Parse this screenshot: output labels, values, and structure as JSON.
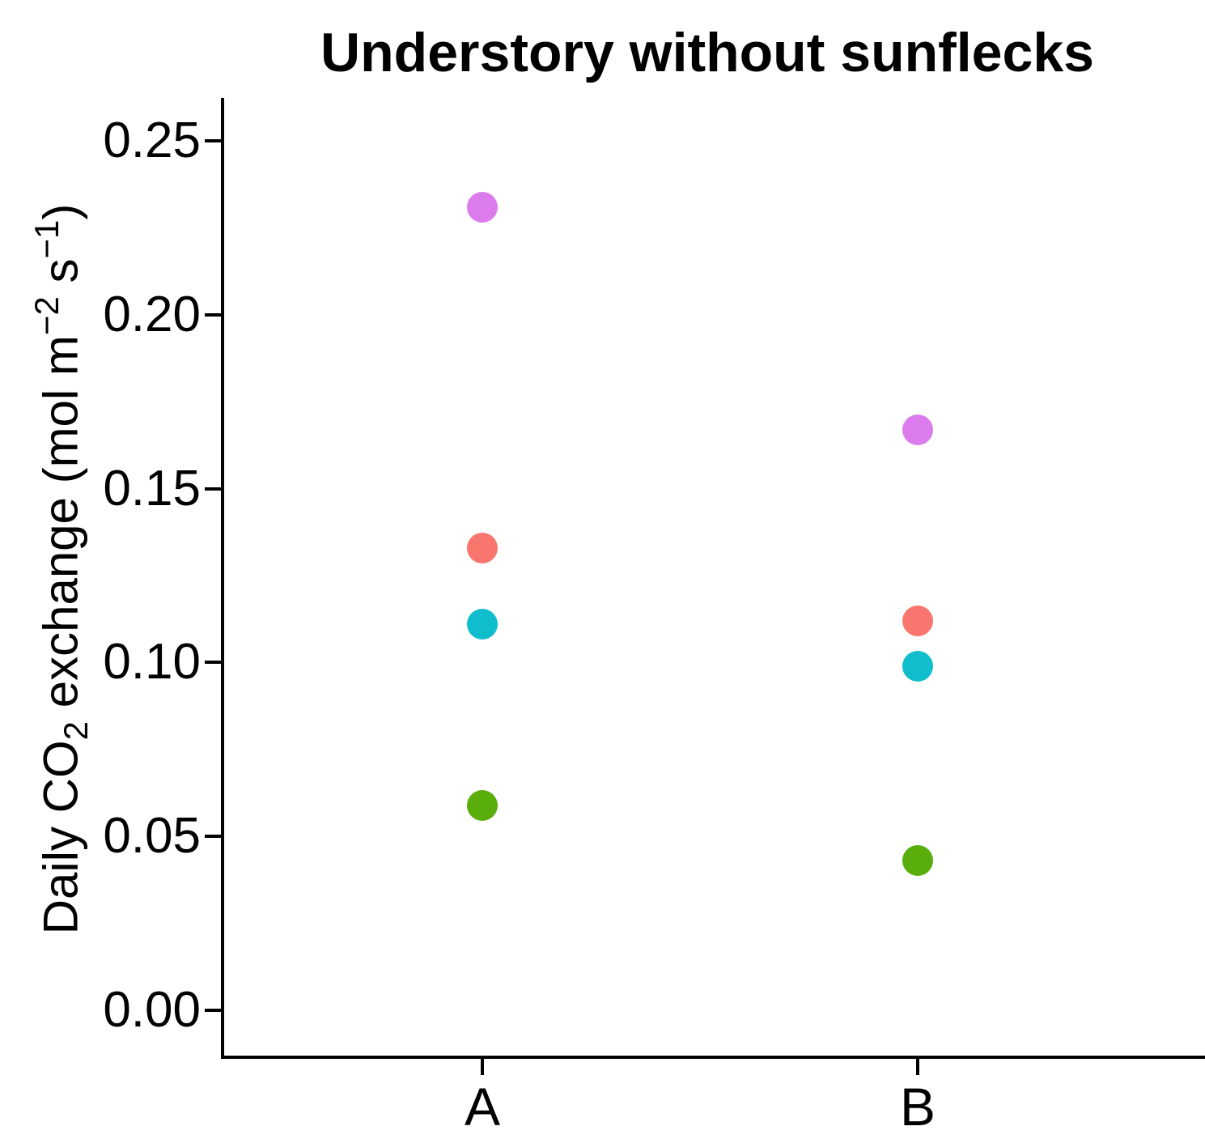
{
  "chart_data": {
    "type": "scatter",
    "title": "Understory without sunflecks",
    "xlabel": "",
    "ylabel": "Daily CO2 exchange (mol m−2 s−1)",
    "ylabel_parts": {
      "p1": "Daily CO",
      "sub1": "2",
      "p2": " exchange (mol m",
      "sup1": "−2",
      "p3": " s",
      "sup2": "−1",
      "p4": ")"
    },
    "categories": [
      "A",
      "B"
    ],
    "series": [
      {
        "name": "violet",
        "color": "#DC7CEC",
        "values": [
          0.231,
          0.167
        ]
      },
      {
        "name": "salmon",
        "color": "#F8766D",
        "values": [
          0.133,
          0.112
        ]
      },
      {
        "name": "cyan",
        "color": "#0FBDCC",
        "values": [
          0.111,
          0.099
        ]
      },
      {
        "name": "green",
        "color": "#5AAE0B",
        "values": [
          0.059,
          0.043
        ]
      }
    ],
    "ylim": [
      0.0,
      0.25
    ],
    "ytick_labels": [
      "0.00",
      "0.05",
      "0.10",
      "0.15",
      "0.20",
      "0.25"
    ],
    "ytick_values": [
      0.0,
      0.05,
      0.1,
      0.15,
      0.2,
      0.25
    ],
    "grid": "off",
    "legend": "none",
    "axis_color": "#000000",
    "background_color": "#FFFFFF"
  }
}
